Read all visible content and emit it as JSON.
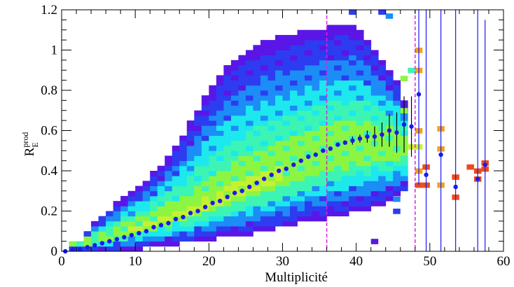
{
  "chart_data": {
    "type": "heatmap",
    "title": "",
    "xlabel": "Multiplicité",
    "ylabel": {
      "base": "R",
      "sub": "E",
      "sup": "prod"
    },
    "xlim": [
      0,
      60
    ],
    "ylim": [
      0,
      1.2
    ],
    "x_ticks": [
      0,
      10,
      20,
      30,
      40,
      50,
      60
    ],
    "x_tick_labels": [
      "0",
      "10",
      "20",
      "30",
      "40",
      "50",
      "60"
    ],
    "y_ticks": [
      0,
      0.2,
      0.4,
      0.6,
      0.8,
      1.0,
      1.2
    ],
    "y_tick_labels": [
      "0",
      "0.2",
      "0.4",
      "0.6",
      "0.8",
      "1",
      "1.2"
    ],
    "grid": false,
    "legend": "none",
    "heatmap": {
      "x_bin_width": 1,
      "y_bin_width": 0.025,
      "palette": [
        "#5a16e6",
        "#2d3cf0",
        "#1c8cf7",
        "#1ce8ee",
        "#3cf5b4",
        "#8cf542",
        "#c8f030",
        "#f2a020",
        "#ec4a1e"
      ],
      "upper_edge": [
        [
          2,
          0.04
        ],
        [
          4,
          0.12
        ],
        [
          6,
          0.19
        ],
        [
          8,
          0.26
        ],
        [
          10,
          0.31
        ],
        [
          12,
          0.37
        ],
        [
          14,
          0.45
        ],
        [
          16,
          0.55
        ],
        [
          18,
          0.68
        ],
        [
          20,
          0.8
        ],
        [
          22,
          0.9
        ],
        [
          24,
          0.97
        ],
        [
          26,
          1.02
        ],
        [
          28,
          1.05
        ],
        [
          30,
          1.07
        ],
        [
          32,
          1.09
        ],
        [
          34,
          1.1
        ],
        [
          36,
          1.11
        ],
        [
          38,
          1.12
        ],
        [
          40,
          1.12
        ],
        [
          42,
          1.04
        ],
        [
          44,
          0.92
        ],
        [
          46,
          0.84
        ],
        [
          47,
          0.66
        ]
      ],
      "lower_edge": [
        [
          2,
          0.0
        ],
        [
          6,
          0.0
        ],
        [
          10,
          0.01
        ],
        [
          14,
          0.03
        ],
        [
          18,
          0.05
        ],
        [
          22,
          0.07
        ],
        [
          26,
          0.09
        ],
        [
          30,
          0.12
        ],
        [
          34,
          0.15
        ],
        [
          38,
          0.18
        ],
        [
          42,
          0.21
        ],
        [
          44,
          0.24
        ],
        [
          46,
          0.28
        ],
        [
          47,
          0.3
        ]
      ],
      "hot_band": [
        [
          4,
          0.05
        ],
        [
          10,
          0.11
        ],
        [
          16,
          0.18
        ],
        [
          20,
          0.23
        ],
        [
          24,
          0.29
        ],
        [
          28,
          0.34
        ],
        [
          32,
          0.4
        ],
        [
          36,
          0.47
        ],
        [
          40,
          0.5
        ],
        [
          44,
          0.52
        ]
      ]
    },
    "mean_points": {
      "name": "",
      "color": "#1a1aee",
      "x": [
        0.5,
        1.5,
        2.5,
        3.5,
        4.5,
        5.5,
        6.5,
        7.5,
        8.5,
        9.5,
        10.5,
        11.5,
        12.5,
        13.5,
        14.5,
        15.5,
        16.5,
        17.5,
        18.5,
        19.5,
        20.5,
        21.5,
        22.5,
        23.5,
        24.5,
        25.5,
        26.5,
        27.5,
        28.5,
        29.5,
        30.5,
        31.5,
        32.5,
        33.5,
        34.5,
        35.5,
        36.5,
        37.5,
        38.5,
        39.5,
        40.5,
        41.5,
        42.5,
        43.5,
        44.5,
        45.5,
        46.5,
        47.5,
        48.5,
        49.5,
        51.5,
        53.5,
        56.5,
        57.5
      ],
      "y": [
        0.0,
        0.01,
        0.01,
        0.02,
        0.03,
        0.04,
        0.05,
        0.06,
        0.07,
        0.08,
        0.09,
        0.1,
        0.12,
        0.13,
        0.14,
        0.16,
        0.17,
        0.19,
        0.2,
        0.22,
        0.24,
        0.25,
        0.27,
        0.29,
        0.3,
        0.32,
        0.34,
        0.36,
        0.38,
        0.4,
        0.41,
        0.43,
        0.45,
        0.47,
        0.48,
        0.5,
        0.51,
        0.53,
        0.54,
        0.55,
        0.56,
        0.57,
        0.57,
        0.58,
        0.6,
        0.59,
        0.63,
        0.62,
        0.78,
        0.38,
        0.48,
        0.32,
        0.36,
        0.43
      ],
      "err_low": [
        0.0,
        0.0,
        0.0,
        0.0,
        0.0,
        0.0,
        0.0,
        0.0,
        0.0,
        0.0,
        0.0,
        0.0,
        0.0,
        0.0,
        0.0,
        0.0,
        0.0,
        0.0,
        0.0,
        0.0,
        0.0,
        0.0,
        0.0,
        0.0,
        0.0,
        0.0,
        0.0,
        0.0,
        0.0,
        0.0,
        0.0,
        0.0,
        0.0,
        0.0,
        0.0,
        0.0,
        0.0,
        0.0,
        0.01,
        0.02,
        0.02,
        0.03,
        0.05,
        0.06,
        0.08,
        0.1,
        0.14,
        0.15,
        0.45,
        0.38,
        0.48,
        0.32,
        0.36,
        0.43
      ],
      "err_high": [
        0.0,
        0.0,
        0.0,
        0.0,
        0.0,
        0.0,
        0.0,
        0.0,
        0.0,
        0.0,
        0.0,
        0.0,
        0.0,
        0.0,
        0.0,
        0.0,
        0.0,
        0.0,
        0.0,
        0.0,
        0.0,
        0.0,
        0.0,
        0.0,
        0.0,
        0.0,
        0.0,
        0.0,
        0.0,
        0.0,
        0.0,
        0.0,
        0.0,
        0.0,
        0.0,
        0.0,
        0.0,
        0.0,
        0.01,
        0.02,
        0.02,
        0.03,
        0.05,
        0.06,
        0.08,
        0.1,
        0.14,
        0.15,
        0.42,
        0.82,
        0.72,
        0.88,
        0.84,
        0.72
      ]
    },
    "sparse_cells": [
      {
        "x": 47.5,
        "y": 0.9,
        "color": "#3cf5b4"
      },
      {
        "x": 46.5,
        "y": 0.86,
        "color": "#8cf542"
      },
      {
        "x": 46.5,
        "y": 0.7,
        "color": "#8cf542"
      },
      {
        "x": 47.5,
        "y": 0.52,
        "color": "#c8f030"
      },
      {
        "x": 48.5,
        "y": 1.0,
        "color": "#f2a020"
      },
      {
        "x": 48.5,
        "y": 0.9,
        "color": "#f2a020"
      },
      {
        "x": 48.5,
        "y": 0.6,
        "color": "#f2a020"
      },
      {
        "x": 48.5,
        "y": 0.52,
        "color": "#c8f030"
      },
      {
        "x": 48.5,
        "y": 0.4,
        "color": "#f2a020"
      },
      {
        "x": 48.5,
        "y": 0.33,
        "color": "#ec4a1e"
      },
      {
        "x": 49.5,
        "y": 0.42,
        "color": "#ec4a1e"
      },
      {
        "x": 49.5,
        "y": 0.33,
        "color": "#ec4a1e"
      },
      {
        "x": 51.5,
        "y": 0.61,
        "color": "#f2a020"
      },
      {
        "x": 51.5,
        "y": 0.51,
        "color": "#f2a020"
      },
      {
        "x": 51.5,
        "y": 0.33,
        "color": "#f2a020"
      },
      {
        "x": 53.5,
        "y": 0.37,
        "color": "#ec4a1e"
      },
      {
        "x": 53.5,
        "y": 0.27,
        "color": "#ec4a1e"
      },
      {
        "x": 55.5,
        "y": 0.42,
        "color": "#ec4a1e"
      },
      {
        "x": 56.5,
        "y": 0.4,
        "color": "#ec4a1e"
      },
      {
        "x": 56.5,
        "y": 0.36,
        "color": "#ec4a1e"
      },
      {
        "x": 57.5,
        "y": 0.44,
        "color": "#ec4a1e"
      },
      {
        "x": 57.5,
        "y": 0.41,
        "color": "#ec4a1e"
      },
      {
        "x": 39.5,
        "y": 1.19,
        "color": "#2d3cf0"
      },
      {
        "x": 44.5,
        "y": 1.17,
        "color": "#1c8cf7"
      },
      {
        "x": 43.5,
        "y": 1.19,
        "color": "#2d3cf0"
      },
      {
        "x": 45.5,
        "y": 0.26,
        "color": "#1c8cf7"
      },
      {
        "x": 45.5,
        "y": 0.2,
        "color": "#2d3cf0"
      },
      {
        "x": 42.5,
        "y": 0.05,
        "color": "#5a16e6"
      }
    ],
    "vertical_lines": [
      {
        "x": 36,
        "color": "#e020e0",
        "style": "dashed"
      },
      {
        "x": 48,
        "color": "#e020e0",
        "style": "dashed"
      }
    ]
  }
}
